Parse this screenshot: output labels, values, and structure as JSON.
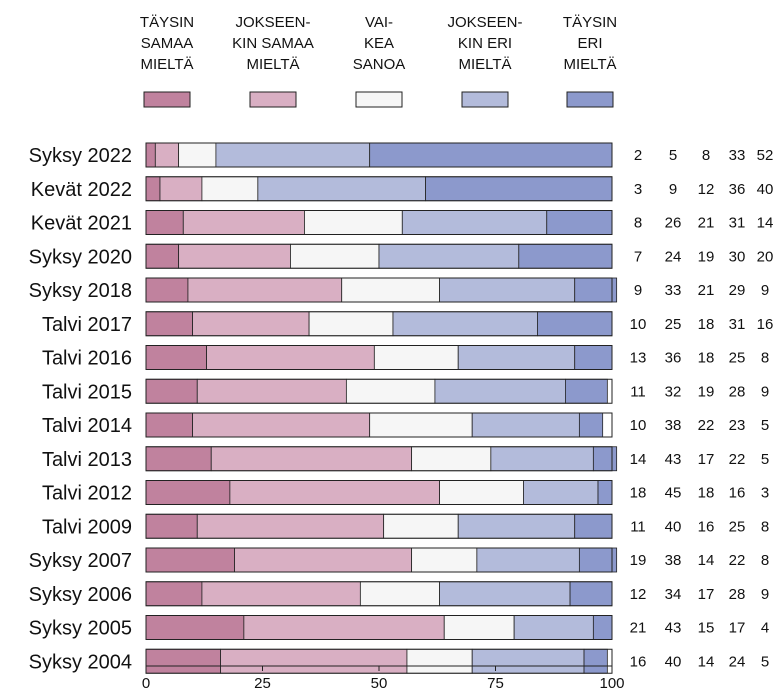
{
  "chart_data": {
    "type": "bar",
    "orientation": "horizontal",
    "stacked": true,
    "xlim": [
      0,
      100
    ],
    "xticks": [
      "0",
      "25",
      "50",
      "75",
      "100"
    ],
    "grid": false,
    "legend_position": "top",
    "categories": [
      "Syksy 2022",
      "Kevät 2022",
      "Kevät 2021",
      "Syksy 2020",
      "Syksy 2018",
      "Talvi 2017",
      "Talvi 2016",
      "Talvi 2015",
      "Talvi 2014",
      "Talvi 2013",
      "Talvi 2012",
      "Talvi 2009",
      "Syksy 2007",
      "Syksy 2006",
      "Syksy 2005",
      "Syksy 2004"
    ],
    "series": [
      {
        "name": [
          "TÄYSIN",
          "SAMAA",
          "MIELTÄ"
        ],
        "color": "#c0829e",
        "values": [
          2,
          3,
          8,
          7,
          9,
          10,
          13,
          11,
          10,
          14,
          18,
          11,
          19,
          12,
          21,
          16
        ]
      },
      {
        "name": [
          "JOKSEEN-",
          "KIN SAMAA",
          "MIELTÄ"
        ],
        "color": "#d9afc3",
        "values": [
          5,
          9,
          26,
          24,
          33,
          25,
          36,
          32,
          38,
          43,
          45,
          40,
          38,
          34,
          43,
          40
        ]
      },
      {
        "name": [
          "VAI-",
          "KEA",
          "SANOA"
        ],
        "color": "#f6f6f6",
        "values": [
          8,
          12,
          21,
          19,
          21,
          18,
          18,
          19,
          22,
          17,
          18,
          16,
          14,
          17,
          15,
          14
        ]
      },
      {
        "name": [
          "JOKSEEN-",
          "KIN ERI",
          "MIELTÄ"
        ],
        "color": "#b3bbdb",
        "values": [
          33,
          36,
          31,
          30,
          29,
          31,
          25,
          28,
          23,
          22,
          16,
          25,
          22,
          28,
          17,
          24
        ]
      },
      {
        "name": [
          "TÄYSIN",
          "ERI",
          "MIELTÄ"
        ],
        "color": "#8c99cc",
        "values": [
          52,
          40,
          14,
          20,
          9,
          16,
          8,
          9,
          5,
          5,
          3,
          8,
          8,
          9,
          4,
          5
        ]
      }
    ]
  }
}
